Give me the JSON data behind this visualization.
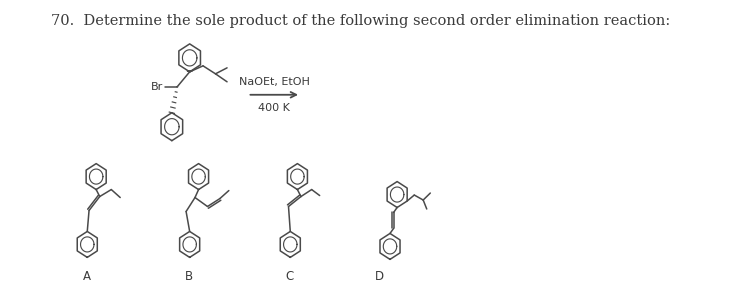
{
  "title": "70.  Determine the sole product of the following second order elimination reaction:",
  "reagent_line1": "NaOEt, EtOH",
  "reagent_line2": "400 K",
  "background_color": "#ffffff",
  "text_color": "#3a3a3a",
  "line_color": "#4a4a4a",
  "lw": 1.1,
  "ring_r": 13,
  "labels": [
    "A",
    "B",
    "C",
    "D"
  ]
}
